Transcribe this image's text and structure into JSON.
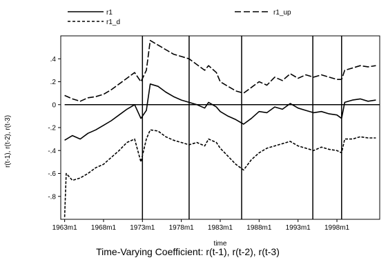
{
  "chart_data": {
    "type": "line",
    "title": "",
    "caption": "Time-Varying Coefficient: r(t-1), r(t-2), r(t-3)",
    "xlabel": "time",
    "ylabel": "r(t-1), r(t-2), r(t-3)",
    "x_ticks": [
      "1963m1",
      "1968m1",
      "1973m1",
      "1978m1",
      "1983m1",
      "1988m1",
      "1993m1",
      "1998m1"
    ],
    "y_ticks": [
      ".4",
      ".2",
      "0",
      "-.2",
      "-.4",
      "-.6",
      "-.8"
    ],
    "xlim": [
      1962.5,
      2003.5
    ],
    "ylim": [
      -1.0,
      0.6
    ],
    "grid": false,
    "legend": {
      "placement": "top",
      "entries": [
        {
          "label": "r1",
          "style": "solid"
        },
        {
          "label": "r1_up",
          "style": "long-dash"
        },
        {
          "label": "r1_d",
          "style": "short-dash"
        }
      ]
    },
    "reference_lines": {
      "horizontal_y": 0,
      "vertical_x": [
        1973.0,
        1979.0,
        1985.75,
        1994.9,
        1998.6
      ]
    },
    "series": [
      {
        "name": "r1",
        "style": "solid",
        "points": [
          [
            1963.0,
            -0.31
          ],
          [
            1964.0,
            -0.27
          ],
          [
            1965.0,
            -0.3
          ],
          [
            1966.0,
            -0.25
          ],
          [
            1967.0,
            -0.22
          ],
          [
            1968.0,
            -0.18
          ],
          [
            1969.0,
            -0.14
          ],
          [
            1970.0,
            -0.09
          ],
          [
            1971.0,
            -0.04
          ],
          [
            1972.0,
            0.0
          ],
          [
            1972.8,
            -0.12
          ],
          [
            1973.5,
            -0.05
          ],
          [
            1974.0,
            0.18
          ],
          [
            1975.0,
            0.16
          ],
          [
            1976.0,
            0.11
          ],
          [
            1977.0,
            0.07
          ],
          [
            1978.0,
            0.04
          ],
          [
            1979.0,
            0.02
          ],
          [
            1980.0,
            0.0
          ],
          [
            1981.0,
            -0.03
          ],
          [
            1981.5,
            0.02
          ],
          [
            1982.5,
            -0.02
          ],
          [
            1983.0,
            -0.06
          ],
          [
            1984.0,
            -0.1
          ],
          [
            1985.0,
            -0.13
          ],
          [
            1986.0,
            -0.17
          ],
          [
            1987.0,
            -0.12
          ],
          [
            1988.0,
            -0.06
          ],
          [
            1989.0,
            -0.07
          ],
          [
            1990.0,
            -0.02
          ],
          [
            1991.0,
            -0.04
          ],
          [
            1992.0,
            0.01
          ],
          [
            1993.0,
            -0.03
          ],
          [
            1994.0,
            -0.05
          ],
          [
            1995.0,
            -0.07
          ],
          [
            1996.0,
            -0.06
          ],
          [
            1997.0,
            -0.08
          ],
          [
            1998.0,
            -0.09
          ],
          [
            1998.6,
            -0.12
          ],
          [
            1999.0,
            0.02
          ],
          [
            2000.0,
            0.04
          ],
          [
            2001.0,
            0.05
          ],
          [
            2002.0,
            0.03
          ],
          [
            2003.0,
            0.04
          ]
        ]
      },
      {
        "name": "r1_up",
        "style": "long-dash",
        "points": [
          [
            1963.0,
            0.08
          ],
          [
            1964.0,
            0.05
          ],
          [
            1965.0,
            0.03
          ],
          [
            1966.0,
            0.06
          ],
          [
            1967.0,
            0.07
          ],
          [
            1968.0,
            0.09
          ],
          [
            1969.0,
            0.13
          ],
          [
            1970.0,
            0.18
          ],
          [
            1971.0,
            0.23
          ],
          [
            1972.0,
            0.28
          ],
          [
            1972.8,
            0.2
          ],
          [
            1973.5,
            0.3
          ],
          [
            1974.0,
            0.56
          ],
          [
            1975.0,
            0.52
          ],
          [
            1976.0,
            0.48
          ],
          [
            1977.0,
            0.44
          ],
          [
            1978.0,
            0.42
          ],
          [
            1979.0,
            0.4
          ],
          [
            1980.0,
            0.35
          ],
          [
            1981.0,
            0.3
          ],
          [
            1981.5,
            0.34
          ],
          [
            1982.5,
            0.28
          ],
          [
            1983.0,
            0.2
          ],
          [
            1984.0,
            0.16
          ],
          [
            1985.0,
            0.12
          ],
          [
            1986.0,
            0.1
          ],
          [
            1987.0,
            0.15
          ],
          [
            1988.0,
            0.2
          ],
          [
            1989.0,
            0.17
          ],
          [
            1990.0,
            0.24
          ],
          [
            1991.0,
            0.21
          ],
          [
            1992.0,
            0.27
          ],
          [
            1993.0,
            0.23
          ],
          [
            1994.0,
            0.26
          ],
          [
            1995.0,
            0.24
          ],
          [
            1996.0,
            0.26
          ],
          [
            1997.0,
            0.24
          ],
          [
            1998.0,
            0.22
          ],
          [
            1998.6,
            0.22
          ],
          [
            1999.0,
            0.3
          ],
          [
            2000.0,
            0.32
          ],
          [
            2001.0,
            0.34
          ],
          [
            2002.0,
            0.33
          ],
          [
            2003.0,
            0.34
          ]
        ]
      },
      {
        "name": "r1_d",
        "style": "short-dash",
        "points": [
          [
            1963.0,
            -0.98
          ],
          [
            1963.2,
            -0.6
          ],
          [
            1964.0,
            -0.66
          ],
          [
            1965.0,
            -0.64
          ],
          [
            1966.0,
            -0.6
          ],
          [
            1967.0,
            -0.55
          ],
          [
            1968.0,
            -0.52
          ],
          [
            1969.0,
            -0.46
          ],
          [
            1970.0,
            -0.4
          ],
          [
            1971.0,
            -0.33
          ],
          [
            1972.0,
            -0.3
          ],
          [
            1972.8,
            -0.5
          ],
          [
            1973.5,
            -0.3
          ],
          [
            1974.0,
            -0.22
          ],
          [
            1975.0,
            -0.23
          ],
          [
            1976.0,
            -0.28
          ],
          [
            1977.0,
            -0.31
          ],
          [
            1978.0,
            -0.33
          ],
          [
            1979.0,
            -0.35
          ],
          [
            1980.0,
            -0.33
          ],
          [
            1981.0,
            -0.36
          ],
          [
            1981.5,
            -0.3
          ],
          [
            1982.5,
            -0.33
          ],
          [
            1983.0,
            -0.38
          ],
          [
            1984.0,
            -0.45
          ],
          [
            1985.0,
            -0.52
          ],
          [
            1986.0,
            -0.57
          ],
          [
            1987.0,
            -0.48
          ],
          [
            1988.0,
            -0.42
          ],
          [
            1989.0,
            -0.38
          ],
          [
            1990.0,
            -0.36
          ],
          [
            1991.0,
            -0.34
          ],
          [
            1992.0,
            -0.32
          ],
          [
            1993.0,
            -0.36
          ],
          [
            1994.0,
            -0.38
          ],
          [
            1995.0,
            -0.4
          ],
          [
            1996.0,
            -0.37
          ],
          [
            1997.0,
            -0.39
          ],
          [
            1998.0,
            -0.4
          ],
          [
            1998.6,
            -0.42
          ],
          [
            1999.0,
            -0.3
          ],
          [
            2000.0,
            -0.3
          ],
          [
            2001.0,
            -0.28
          ],
          [
            2002.0,
            -0.29
          ],
          [
            2003.0,
            -0.29
          ]
        ]
      }
    ]
  }
}
